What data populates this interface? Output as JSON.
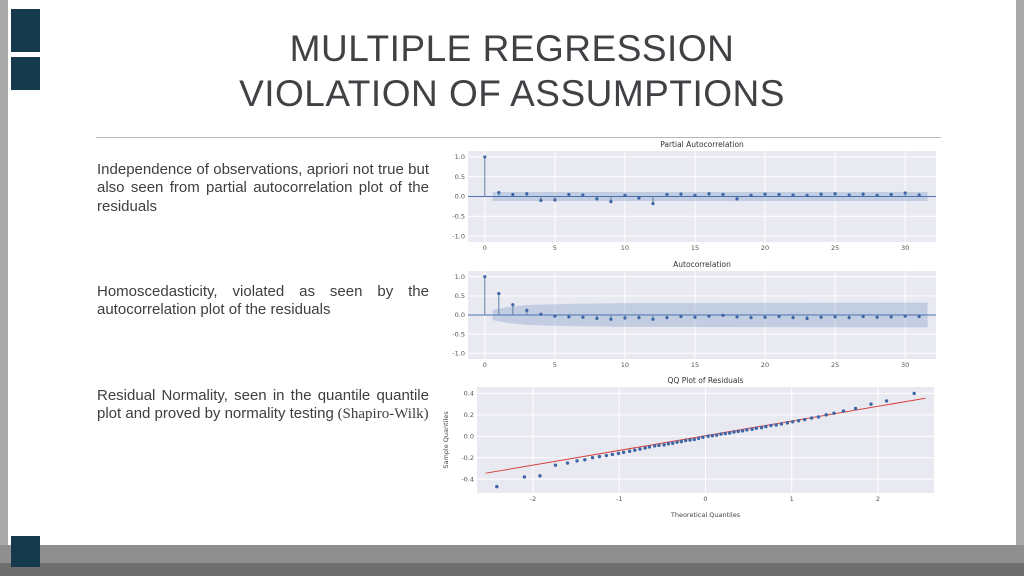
{
  "slide": {
    "title_line1": "MULTIPLE REGRESSION",
    "title_line2": "VIOLATION OF ASSUMPTIONS",
    "bullets": [
      {
        "text": "Independence of observations, apriori not true but also seen from partial autocorrelation plot of the residuals"
      },
      {
        "text": "Homoscedasticity, violated as seen by the autocorrelation plot of the residuals"
      },
      {
        "text": "Residual Normality, seen in the quantile quantile plot and proved by normality testing",
        "suffix": " (Shapiro-Wilk)"
      }
    ]
  },
  "colors": {
    "accent": "#153a4e",
    "plot_bg": "#e9e9f1",
    "marker": "#3c66a5",
    "stem": "#5a7ca6",
    "band": "#7b9cc4",
    "zero_line": "#4c72b0",
    "fit_line": "#d64541"
  },
  "chart_data": [
    {
      "type": "stem",
      "title": "Partial Autocorrelation",
      "xlim": [
        -1.2,
        32.2
      ],
      "ylim": [
        -1.15,
        1.15
      ],
      "xticks": [
        0,
        5,
        10,
        15,
        20,
        25,
        30
      ],
      "yticks": [
        -1.0,
        -0.5,
        0.0,
        0.5,
        1.0
      ],
      "grid": true,
      "values": [
        1.0,
        0.1,
        0.05,
        0.07,
        -0.1,
        -0.09,
        0.05,
        0.04,
        -0.06,
        -0.13,
        0.03,
        -0.04,
        -0.18,
        0.05,
        0.06,
        0.03,
        0.07,
        0.05,
        -0.06,
        0.03,
        0.06,
        0.05,
        0.04,
        0.03,
        0.06,
        0.07,
        0.04,
        0.06,
        0.03,
        0.05,
        0.09,
        0.04
      ],
      "band": [
        [
          0.55,
          0.115
        ],
        [
          31.6,
          0.115
        ]
      ]
    },
    {
      "type": "stem",
      "title": "Autocorrelation",
      "xlim": [
        -1.2,
        32.2
      ],
      "ylim": [
        -1.15,
        1.15
      ],
      "xticks": [
        0,
        5,
        10,
        15,
        20,
        25,
        30
      ],
      "yticks": [
        -1.0,
        -0.5,
        0.0,
        0.5,
        1.0
      ],
      "grid": true,
      "values": [
        1.0,
        0.56,
        0.27,
        0.12,
        0.02,
        -0.03,
        -0.05,
        -0.06,
        -0.09,
        -0.11,
        -0.08,
        -0.07,
        -0.11,
        -0.07,
        -0.04,
        -0.06,
        -0.03,
        -0.01,
        -0.05,
        -0.07,
        -0.06,
        -0.04,
        -0.07,
        -0.09,
        -0.06,
        -0.05,
        -0.07,
        -0.04,
        -0.06,
        -0.05,
        -0.03,
        -0.04
      ],
      "band": [
        [
          0.55,
          0.13
        ],
        [
          1.5,
          0.2
        ],
        [
          3,
          0.26
        ],
        [
          6,
          0.29
        ],
        [
          10,
          0.31
        ],
        [
          31.6,
          0.325
        ]
      ]
    },
    {
      "type": "qq",
      "title": "QQ Plot of Residuals",
      "xlabel": "Theoretical Quantiles",
      "ylabel": "Sample Quantiles",
      "xlim": [
        -2.65,
        2.65
      ],
      "ylim": [
        -0.53,
        0.46
      ],
      "xticks": [
        -2,
        -1,
        0,
        1,
        2
      ],
      "yticks": [
        -0.4,
        -0.2,
        0.0,
        0.2,
        0.4
      ],
      "grid": true,
      "line": [
        [
          -2.55,
          -0.345
        ],
        [
          2.55,
          0.355
        ]
      ],
      "points_x": [
        -2.42,
        -2.1,
        -1.92,
        -1.74,
        -1.6,
        -1.49,
        -1.4,
        -1.31,
        -1.23,
        -1.15,
        -1.08,
        -1.01,
        -0.95,
        -0.88,
        -0.82,
        -0.76,
        -0.7,
        -0.65,
        -0.59,
        -0.54,
        -0.48,
        -0.43,
        -0.38,
        -0.33,
        -0.28,
        -0.23,
        -0.18,
        -0.13,
        -0.08,
        -0.03,
        0.03,
        0.08,
        0.13,
        0.18,
        0.23,
        0.28,
        0.33,
        0.38,
        0.43,
        0.48,
        0.54,
        0.59,
        0.65,
        0.7,
        0.76,
        0.82,
        0.88,
        0.95,
        1.01,
        1.08,
        1.15,
        1.23,
        1.31,
        1.4,
        1.49,
        1.6,
        1.74,
        1.92,
        2.1,
        2.42
      ],
      "points_y": [
        -0.47,
        -0.38,
        -0.37,
        -0.27,
        -0.25,
        -0.23,
        -0.22,
        -0.2,
        -0.19,
        -0.18,
        -0.17,
        -0.16,
        -0.15,
        -0.14,
        -0.13,
        -0.12,
        -0.11,
        -0.1,
        -0.09,
        -0.085,
        -0.08,
        -0.07,
        -0.065,
        -0.055,
        -0.05,
        -0.04,
        -0.035,
        -0.03,
        -0.02,
        -0.01,
        0.0,
        0.005,
        0.01,
        0.02,
        0.025,
        0.03,
        0.04,
        0.045,
        0.05,
        0.06,
        0.065,
        0.075,
        0.08,
        0.09,
        0.1,
        0.105,
        0.115,
        0.125,
        0.135,
        0.145,
        0.155,
        0.17,
        0.18,
        0.2,
        0.215,
        0.235,
        0.26,
        0.3,
        0.33,
        0.4
      ]
    }
  ]
}
